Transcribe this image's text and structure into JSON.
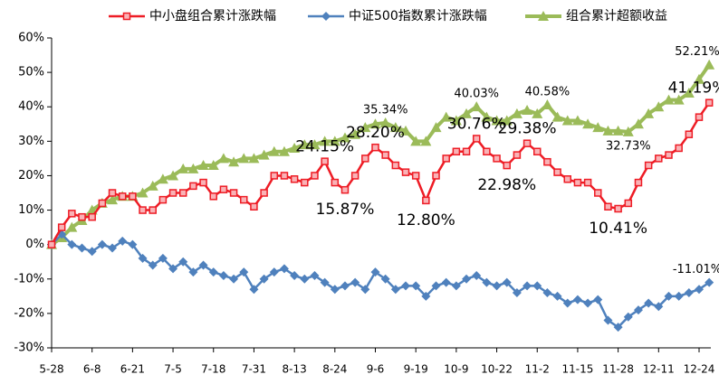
{
  "chart_data": {
    "type": "line",
    "categories": [
      "5-28",
      null,
      null,
      null,
      "6-8",
      null,
      null,
      null,
      "6-21",
      null,
      null,
      null,
      "7-5",
      null,
      null,
      null,
      "7-18",
      null,
      null,
      null,
      "7-31",
      null,
      null,
      null,
      "8-13",
      null,
      null,
      null,
      "8-24",
      null,
      null,
      null,
      "9-6",
      null,
      null,
      null,
      "9-19",
      null,
      null,
      null,
      "10-9",
      null,
      null,
      null,
      "10-22",
      null,
      null,
      null,
      "11-2",
      null,
      null,
      null,
      "11-15",
      null,
      null,
      null,
      "11-28",
      null,
      null,
      null,
      "12-11",
      null,
      null,
      null,
      "12-24",
      null
    ],
    "series": [
      {
        "name": "中小盘组合累计涨跌幅",
        "color": "#ee1c25",
        "marker": "square",
        "values": [
          0,
          5,
          9,
          8,
          8,
          12,
          15,
          14,
          14,
          10,
          10,
          13,
          15,
          15,
          17,
          18,
          14,
          16,
          15,
          13,
          11,
          15,
          20,
          20,
          19,
          18,
          20,
          24.15,
          18,
          15.87,
          20,
          25,
          28.2,
          26,
          23,
          21,
          20,
          12.8,
          20,
          25,
          27,
          27,
          30.76,
          27,
          25,
          22.98,
          26,
          29.38,
          27,
          24,
          21,
          19,
          18,
          18,
          15,
          11,
          10.41,
          12,
          18,
          23,
          25,
          26,
          28,
          32,
          37,
          41.19
        ],
        "value_labels": [
          null,
          null,
          null,
          null,
          null,
          null,
          null,
          null,
          null,
          null,
          null,
          null,
          null,
          null,
          null,
          null,
          null,
          null,
          null,
          null,
          null,
          null,
          null,
          null,
          null,
          null,
          null,
          "24.15%",
          null,
          "15.87%",
          null,
          null,
          "28.20%",
          null,
          null,
          null,
          null,
          "12.80%",
          null,
          null,
          null,
          null,
          "30.76%",
          null,
          null,
          "22.98%",
          null,
          "29.38%",
          null,
          null,
          null,
          null,
          null,
          null,
          null,
          null,
          "10.41%",
          null,
          null,
          null,
          null,
          null,
          null,
          null,
          null,
          "41.19%"
        ]
      },
      {
        "name": "中证500指数累计涨跌幅",
        "color": "#4f81bd",
        "marker": "diamond",
        "values": [
          0,
          3,
          0,
          -1,
          -2,
          0,
          -1,
          1,
          0,
          -4,
          -6,
          -4,
          -7,
          -5,
          -8,
          -6,
          -8,
          -9,
          -10,
          -8,
          -13,
          -10,
          -8,
          -7,
          -9,
          -10,
          -9,
          -11,
          -13,
          -12,
          -11,
          -13,
          -8,
          -10,
          -13,
          -12,
          -12,
          -15,
          -12,
          -11,
          -12,
          -10,
          -9,
          -11,
          -12,
          -11,
          -14,
          -12,
          -12,
          -14,
          -15,
          -17,
          -16,
          -17,
          -16,
          -22,
          -24,
          -21,
          -19,
          -17,
          -18,
          -15,
          -15,
          -14,
          -13,
          -11.01
        ],
        "value_labels": [
          null,
          null,
          null,
          null,
          null,
          null,
          null,
          null,
          null,
          null,
          null,
          null,
          null,
          null,
          null,
          null,
          null,
          null,
          null,
          null,
          null,
          null,
          null,
          null,
          null,
          null,
          null,
          null,
          null,
          null,
          null,
          null,
          null,
          null,
          null,
          null,
          null,
          null,
          null,
          null,
          null,
          null,
          null,
          null,
          null,
          null,
          null,
          null,
          null,
          null,
          null,
          null,
          null,
          null,
          null,
          null,
          null,
          null,
          null,
          null,
          null,
          null,
          null,
          null,
          null,
          "-11.01%"
        ]
      },
      {
        "name": "组合累计超额收益",
        "color": "#9bbb59",
        "marker": "triangle",
        "values": [
          0,
          2,
          5,
          7,
          10,
          12,
          13,
          14,
          14,
          15,
          17,
          19,
          20,
          22,
          22,
          23,
          23,
          25,
          24,
          25,
          25,
          26,
          27,
          27,
          28,
          29,
          29,
          30,
          30,
          31,
          32,
          34,
          35,
          35.34,
          34,
          33,
          30,
          30,
          34,
          37,
          36,
          38,
          40.03,
          37,
          36,
          36,
          38,
          39,
          38,
          40.58,
          37,
          36,
          36,
          35,
          34,
          33,
          33,
          32.73,
          35,
          38,
          40,
          42,
          42,
          44,
          48,
          52.21
        ],
        "value_labels": [
          null,
          null,
          null,
          null,
          null,
          null,
          null,
          null,
          null,
          null,
          null,
          null,
          null,
          null,
          null,
          null,
          null,
          null,
          null,
          null,
          null,
          null,
          null,
          null,
          null,
          null,
          null,
          null,
          null,
          null,
          null,
          null,
          null,
          "35.34%",
          null,
          null,
          null,
          null,
          null,
          null,
          null,
          null,
          "40.03%",
          null,
          null,
          null,
          null,
          null,
          null,
          "40.58%",
          null,
          null,
          null,
          null,
          null,
          null,
          null,
          "32.73%",
          null,
          null,
          null,
          null,
          null,
          null,
          null,
          "52.21%"
        ]
      }
    ],
    "ylim": [
      -30,
      60
    ],
    "yticks": [
      {
        "value": -30,
        "label": "-30%"
      },
      {
        "value": -20,
        "label": "-20%"
      },
      {
        "value": -10,
        "label": "-10%"
      },
      {
        "value": 0,
        "label": "0%"
      },
      {
        "value": 10,
        "label": "10%"
      },
      {
        "value": 20,
        "label": "20%"
      },
      {
        "value": 30,
        "label": "30%"
      },
      {
        "value": 40,
        "label": "40%"
      },
      {
        "value": 50,
        "label": "50%"
      },
      {
        "value": 60,
        "label": "60%"
      }
    ],
    "grid": false,
    "legend": "top"
  }
}
